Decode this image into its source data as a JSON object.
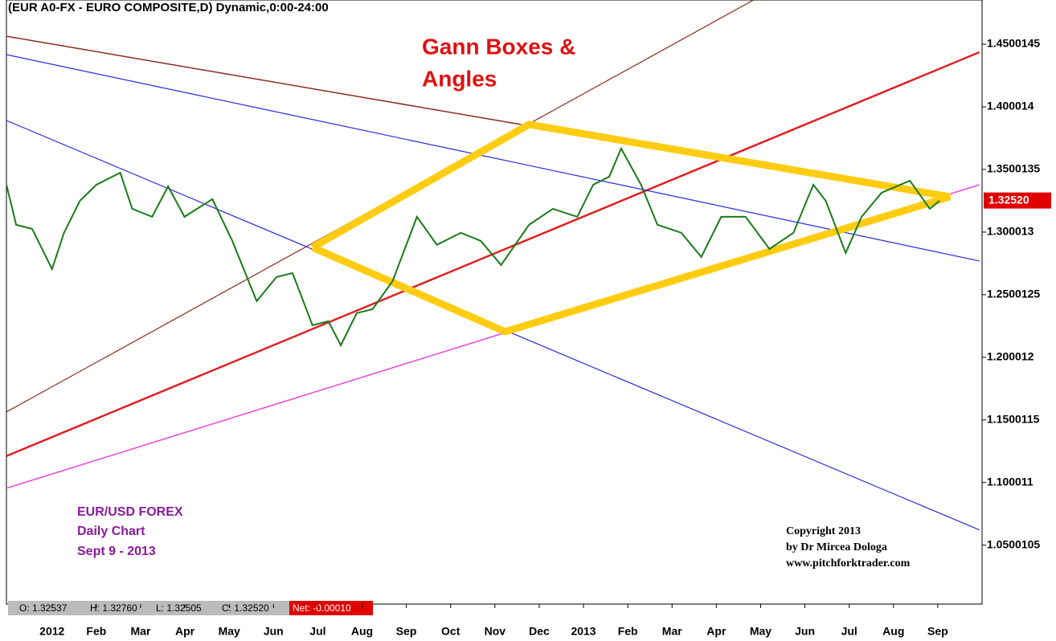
{
  "chart_data": {
    "type": "line",
    "title": "(EUR A0-FX - EURO COMPOSITE,D) Dynamic,0:00-24:00",
    "annotation": [
      "Gann Boxes &",
      "Angles"
    ],
    "info": [
      "EUR/USD FOREX",
      "Daily Chart",
      "Sept 9 - 2013"
    ],
    "copyright": [
      "Copyright 2013",
      "by Dr Mircea Dologa",
      "www.pitchforktrader.com"
    ],
    "status": [
      "O: 1.32537",
      "H: 1.32760",
      "L: 1.32505",
      "C: 1.32520"
    ],
    "net": "Net: -0.00010",
    "last_price": {
      "value": 1.3252,
      "label": "1.32520"
    },
    "color": "#1a7a1a",
    "x": [
      -1.03,
      -0.81,
      -0.45,
      0,
      0.27,
      0.63,
      1.0,
      1.54,
      1.81,
      2.26,
      2.62,
      2.99,
      3.62,
      4.07,
      4.62,
      5.07,
      5.43,
      5.88,
      6.24,
      6.52,
      6.88,
      7.24,
      7.69,
      8.24,
      8.69,
      9.23,
      9.68,
      10.14,
      10.77,
      11.31,
      11.86,
      12.22,
      12.58,
      12.85,
      13.3,
      13.67,
      14.21,
      14.66,
      15.11,
      15.66,
      16.2,
      16.74,
      17.19,
      17.47,
      17.92,
      18.28,
      18.73,
      19.37,
      19.82,
      20.04
    ],
    "values": [
      1.3378,
      1.3058,
      1.3026,
      1.2705,
      1.2994,
      1.325,
      1.3378,
      1.3474,
      1.3186,
      1.3122,
      1.3365,
      1.3122,
      1.3263,
      1.293,
      1.2449,
      1.2641,
      1.2673,
      1.2256,
      1.2288,
      1.2096,
      1.2353,
      1.2385,
      1.2609,
      1.3122,
      1.2898,
      1.2994,
      1.293,
      1.2737,
      1.3058,
      1.3186,
      1.3122,
      1.3378,
      1.3442,
      1.3667,
      1.3378,
      1.3058,
      1.2994,
      1.2801,
      1.3122,
      1.3122,
      1.2865,
      1.2994,
      1.3378,
      1.325,
      1.2833,
      1.3122,
      1.3314,
      1.341,
      1.3186,
      1.325
    ],
    "xlim": [
      -1.03,
      21.0
    ],
    "xticks": [
      {
        "value": 0,
        "label": "2012"
      },
      {
        "value": 1,
        "label": "Feb"
      },
      {
        "value": 2,
        "label": "Mar"
      },
      {
        "value": 3,
        "label": "Apr"
      },
      {
        "value": 4,
        "label": "May"
      },
      {
        "value": 5,
        "label": "Jun"
      },
      {
        "value": 6,
        "label": "Jul"
      },
      {
        "value": 7,
        "label": "Aug"
      },
      {
        "value": 8,
        "label": "Sep"
      },
      {
        "value": 9,
        "label": "Oct"
      },
      {
        "value": 10,
        "label": "Nov"
      },
      {
        "value": 11,
        "label": "Dec"
      },
      {
        "value": 12,
        "label": "2013"
      },
      {
        "value": 13,
        "label": "Feb"
      },
      {
        "value": 14,
        "label": "Mar"
      },
      {
        "value": 15,
        "label": "Apr"
      },
      {
        "value": 16,
        "label": "May"
      },
      {
        "value": 17,
        "label": "Jun"
      },
      {
        "value": 18,
        "label": "Jul"
      },
      {
        "value": 19,
        "label": "Aug"
      },
      {
        "value": 20,
        "label": "Sep"
      }
    ],
    "ylim": [
      1.003,
      1.4853
    ],
    "yticks": [
      {
        "value": 1.45,
        "label": "1.4500145"
      },
      {
        "value": 1.4,
        "label": "1.400014"
      },
      {
        "value": 1.35,
        "label": "1.3500135"
      },
      {
        "value": 1.3,
        "label": "1.300013"
      },
      {
        "value": 1.25,
        "label": "1.2500125"
      },
      {
        "value": 1.2,
        "label": "1.200012"
      },
      {
        "value": 1.15,
        "label": "1.1500115"
      },
      {
        "value": 1.1,
        "label": "1.100011"
      },
      {
        "value": 1.05,
        "label": "1.0500105"
      }
    ],
    "trendlines": [
      {
        "color": "#8b2a1a",
        "width": 1.5,
        "points": [
          [
            -1.03,
            1.4564
          ],
          [
            10.59,
            1.3859
          ]
        ]
      },
      {
        "color": "#8b2a1a",
        "width": 1.2,
        "points": [
          [
            -1.03,
            1.1564
          ],
          [
            15.84,
            1.4853
          ]
        ]
      },
      {
        "color": "#e02020",
        "width": 2.5,
        "points": [
          [
            -1.03,
            1.1212
          ],
          [
            20.94,
            1.4436
          ]
        ]
      },
      {
        "color": "#2a2ae0",
        "width": 1.2,
        "points": [
          [
            -1.03,
            1.4417
          ],
          [
            20.94,
            1.2769
          ]
        ]
      },
      {
        "color": "#2a2ae0",
        "width": 1.2,
        "points": [
          [
            -1.03,
            1.3891
          ],
          [
            20.94,
            1.0622
          ]
        ]
      },
      {
        "color": "#ee44dd",
        "width": 1.5,
        "points": [
          [
            -1.03,
            1.0955
          ],
          [
            20.94,
            1.3378
          ]
        ]
      }
    ],
    "gann_box": {
      "color": "#ffcc11",
      "points": [
        [
          5.88,
          1.2878
        ],
        [
          10.77,
          1.3859
        ],
        [
          20.27,
          1.3282
        ],
        [
          10.23,
          1.2205
        ],
        [
          5.88,
          1.2878
        ]
      ]
    }
  }
}
